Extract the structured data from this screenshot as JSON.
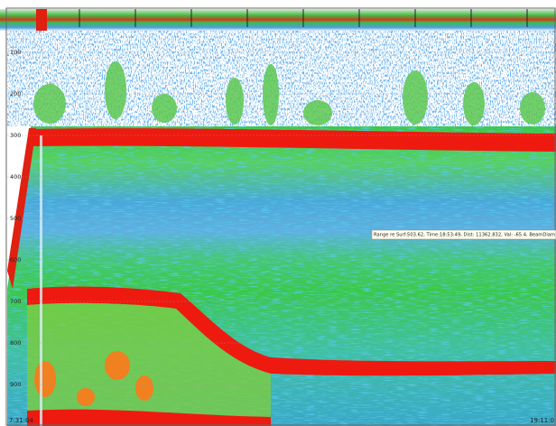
{
  "depth_labels": [
    "100",
    "200",
    "300",
    "400",
    "500",
    "600",
    "700",
    "800",
    "900"
  ],
  "tooltip": "Range re Surf:503.62, Time:18:53:49, Dist: 11362.832, Val: -65.4, BeamDiam",
  "time_start": "7:31:04",
  "time_end": "19:11:0"
}
